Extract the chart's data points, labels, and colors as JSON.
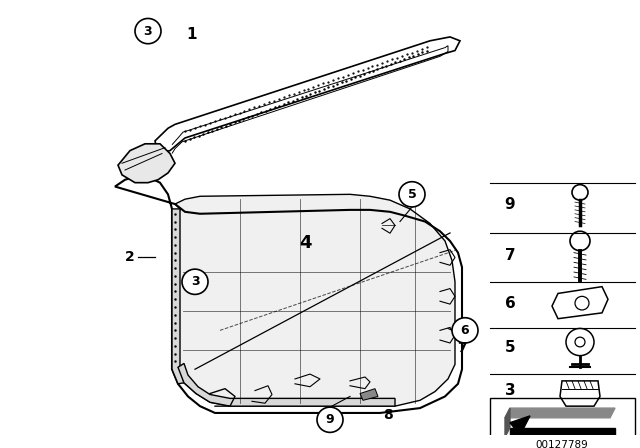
{
  "bg_color": "#ffffff",
  "diagram_id": "00127789",
  "line_color": "#000000"
}
